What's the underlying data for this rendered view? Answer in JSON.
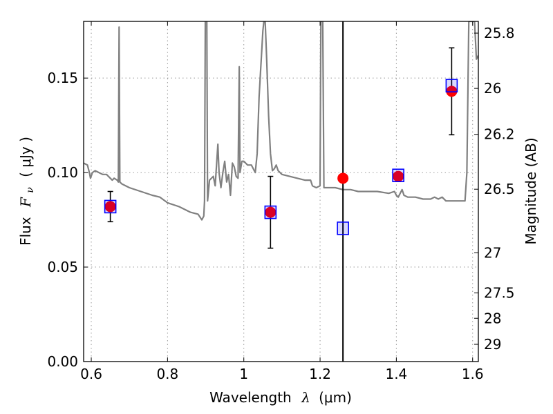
{
  "chart_data": {
    "type": "scatter",
    "xlabel_text": "Wavelength",
    "xlabel_symbol": "λ",
    "xlabel_unit": "(μm)",
    "ylabel_text": "Flux",
    "ylabel_symbol": "F",
    "ylabel_sub": "ν",
    "ylabel_unit": "( μJy )",
    "y2label": "Magnitude (AB)",
    "xlim": [
      0.58,
      1.615
    ],
    "ylim": [
      0.0,
      0.18
    ],
    "grid": true,
    "x_ticks": [
      {
        "value": 0.6,
        "label": "0.6"
      },
      {
        "value": 0.8,
        "label": "0.8"
      },
      {
        "value": 1.0,
        "label": "1"
      },
      {
        "value": 1.2,
        "label": "1.2"
      },
      {
        "value": 1.4,
        "label": "1.4"
      },
      {
        "value": 1.6,
        "label": "1.6"
      }
    ],
    "y_ticks": [
      {
        "value": 0.0,
        "label": "0.00"
      },
      {
        "value": 0.05,
        "label": "0.05"
      },
      {
        "value": 0.1,
        "label": "0.10"
      },
      {
        "value": 0.15,
        "label": "0.15"
      }
    ],
    "y2_ticks": [
      {
        "mag": 25.8,
        "label": "25.8"
      },
      {
        "mag": 26.0,
        "label": "26"
      },
      {
        "mag": 26.2,
        "label": "26.2"
      },
      {
        "mag": 26.5,
        "label": "26.5"
      },
      {
        "mag": 27.0,
        "label": "27"
      },
      {
        "mag": 27.5,
        "label": "27.5"
      },
      {
        "mag": 28.0,
        "label": "28"
      },
      {
        "mag": 29.0,
        "label": "29"
      }
    ],
    "vertical_line_x": 1.26,
    "colors": {
      "spectrum": "#808080",
      "observed": "#ff0000",
      "model": "#0000ff",
      "vline": "#000000",
      "errorbar": "#000000",
      "grid": "#999999"
    },
    "observed_points": [
      {
        "x": 0.65,
        "y": 0.082,
        "err": 0.008
      },
      {
        "x": 1.07,
        "y": 0.079,
        "err": 0.019
      },
      {
        "x": 1.26,
        "y": 0.097,
        "err": null
      },
      {
        "x": 1.405,
        "y": 0.098,
        "err": null
      },
      {
        "x": 1.545,
        "y": 0.143,
        "err": 0.023
      }
    ],
    "model_points": [
      {
        "x": 0.65,
        "y": 0.082
      },
      {
        "x": 1.07,
        "y": 0.079
      },
      {
        "x": 1.26,
        "y": 0.0705
      },
      {
        "x": 1.405,
        "y": 0.0985
      },
      {
        "x": 1.545,
        "y": 0.146
      }
    ],
    "spectrum": [
      [
        0.58,
        0.105
      ],
      [
        0.59,
        0.104
      ],
      [
        0.595,
        0.1
      ],
      [
        0.598,
        0.097
      ],
      [
        0.603,
        0.1
      ],
      [
        0.61,
        0.101
      ],
      [
        0.62,
        0.1
      ],
      [
        0.63,
        0.099
      ],
      [
        0.64,
        0.099
      ],
      [
        0.65,
        0.097
      ],
      [
        0.655,
        0.096
      ],
      [
        0.66,
        0.097
      ],
      [
        0.668,
        0.096
      ],
      [
        0.671,
        0.095
      ],
      [
        0.673,
        0.177
      ],
      [
        0.675,
        0.095
      ],
      [
        0.68,
        0.094
      ],
      [
        0.7,
        0.092
      ],
      [
        0.73,
        0.09
      ],
      [
        0.76,
        0.088
      ],
      [
        0.78,
        0.087
      ],
      [
        0.8,
        0.084
      ],
      [
        0.83,
        0.082
      ],
      [
        0.86,
        0.079
      ],
      [
        0.88,
        0.078
      ],
      [
        0.89,
        0.075
      ],
      [
        0.895,
        0.077
      ],
      [
        0.897,
        0.085
      ],
      [
        0.899,
        0.18
      ],
      [
        0.903,
        0.18
      ],
      [
        0.905,
        0.085
      ],
      [
        0.91,
        0.096
      ],
      [
        0.92,
        0.098
      ],
      [
        0.925,
        0.093
      ],
      [
        0.932,
        0.115
      ],
      [
        0.935,
        0.1
      ],
      [
        0.94,
        0.092
      ],
      [
        0.945,
        0.1
      ],
      [
        0.95,
        0.106
      ],
      [
        0.955,
        0.095
      ],
      [
        0.96,
        0.099
      ],
      [
        0.965,
        0.088
      ],
      [
        0.97,
        0.105
      ],
      [
        0.975,
        0.103
      ],
      [
        0.98,
        0.098
      ],
      [
        0.985,
        0.097
      ],
      [
        0.988,
        0.156
      ],
      [
        0.99,
        0.1
      ],
      [
        0.995,
        0.106
      ],
      [
        1.0,
        0.106
      ],
      [
        1.01,
        0.104
      ],
      [
        1.02,
        0.104
      ],
      [
        1.03,
        0.1
      ],
      [
        1.035,
        0.11
      ],
      [
        1.04,
        0.14
      ],
      [
        1.05,
        0.175
      ],
      [
        1.055,
        0.185
      ],
      [
        1.06,
        0.16
      ],
      [
        1.065,
        0.13
      ],
      [
        1.07,
        0.11
      ],
      [
        1.075,
        0.101
      ],
      [
        1.08,
        0.102
      ],
      [
        1.085,
        0.104
      ],
      [
        1.09,
        0.101
      ],
      [
        1.1,
        0.099
      ],
      [
        1.12,
        0.098
      ],
      [
        1.14,
        0.097
      ],
      [
        1.16,
        0.096
      ],
      [
        1.175,
        0.096
      ],
      [
        1.18,
        0.093
      ],
      [
        1.19,
        0.092
      ],
      [
        1.2,
        0.093
      ],
      [
        1.202,
        0.18
      ],
      [
        1.207,
        0.18
      ],
      [
        1.21,
        0.092
      ],
      [
        1.22,
        0.092
      ],
      [
        1.24,
        0.092
      ],
      [
        1.26,
        0.091
      ],
      [
        1.28,
        0.091
      ],
      [
        1.3,
        0.09
      ],
      [
        1.35,
        0.09
      ],
      [
        1.38,
        0.089
      ],
      [
        1.395,
        0.09
      ],
      [
        1.4,
        0.088
      ],
      [
        1.405,
        0.087
      ],
      [
        1.41,
        0.089
      ],
      [
        1.415,
        0.091
      ],
      [
        1.42,
        0.088
      ],
      [
        1.43,
        0.087
      ],
      [
        1.45,
        0.087
      ],
      [
        1.47,
        0.086
      ],
      [
        1.49,
        0.086
      ],
      [
        1.5,
        0.087
      ],
      [
        1.51,
        0.086
      ],
      [
        1.52,
        0.087
      ],
      [
        1.53,
        0.085
      ],
      [
        1.56,
        0.085
      ],
      [
        1.58,
        0.085
      ],
      [
        1.585,
        0.1
      ],
      [
        1.59,
        0.18
      ],
      [
        1.595,
        0.18
      ],
      [
        1.605,
        0.18
      ],
      [
        1.61,
        0.16
      ],
      [
        1.615,
        0.162
      ]
    ]
  }
}
